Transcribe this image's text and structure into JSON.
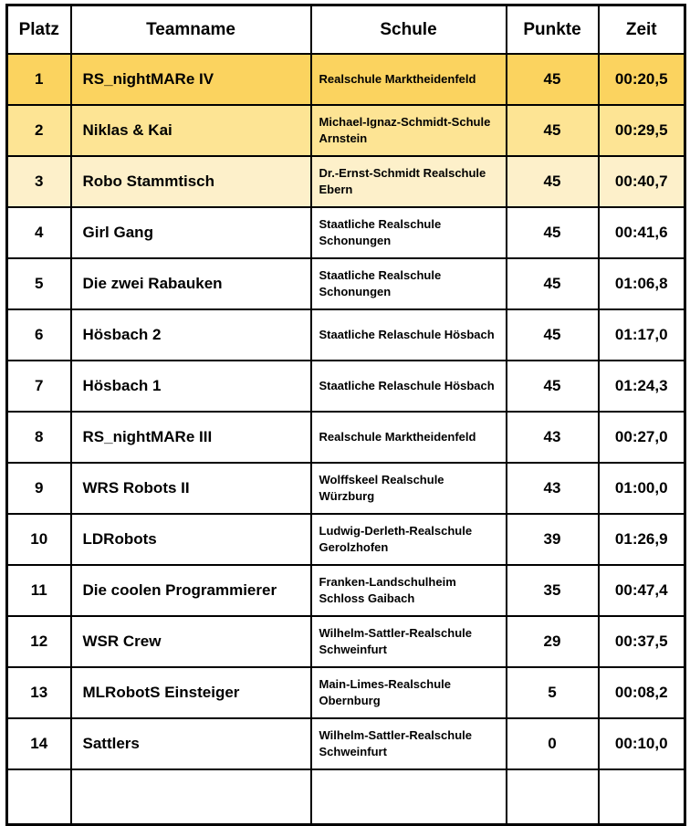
{
  "table": {
    "columns": [
      {
        "key": "platz",
        "label": "Platz"
      },
      {
        "key": "teamname",
        "label": "Teamname"
      },
      {
        "key": "schule",
        "label": "Schule"
      },
      {
        "key": "punkte",
        "label": "Punkte"
      },
      {
        "key": "zeit",
        "label": "Zeit"
      }
    ],
    "rows": [
      {
        "platz": "1",
        "teamname": "RS_nightMARe IV",
        "schule": "Realschule Marktheidenfeld",
        "punkte": "45",
        "zeit": "00:20,5",
        "highlight": "gold"
      },
      {
        "platz": "2",
        "teamname": "Niklas & Kai",
        "schule": "Michael-Ignaz-Schmidt-Schule Arnstein",
        "punkte": "45",
        "zeit": "00:29,5",
        "highlight": "gold2"
      },
      {
        "platz": "3",
        "teamname": "Robo Stammtisch",
        "schule": "Dr.-Ernst-Schmidt Realschule Ebern",
        "punkte": "45",
        "zeit": "00:40,7",
        "highlight": "cream"
      },
      {
        "platz": "4",
        "teamname": "Girl Gang",
        "schule": "Staatliche Realschule Schonungen",
        "punkte": "45",
        "zeit": "00:41,6",
        "highlight": "none"
      },
      {
        "platz": "5",
        "teamname": "Die zwei Rabauken",
        "schule": "Staatliche Realschule Schonungen",
        "punkte": "45",
        "zeit": "01:06,8",
        "highlight": "none"
      },
      {
        "platz": "6",
        "teamname": "Hösbach 2",
        "schule": "Staatliche Relaschule Hösbach",
        "punkte": "45",
        "zeit": "01:17,0",
        "highlight": "none"
      },
      {
        "platz": "7",
        "teamname": "Hösbach 1",
        "schule": "Staatliche Relaschule Hösbach",
        "punkte": "45",
        "zeit": "01:24,3",
        "highlight": "none"
      },
      {
        "platz": "8",
        "teamname": "RS_nightMARe III",
        "schule": "Realschule Marktheidenfeld",
        "punkte": "43",
        "zeit": "00:27,0",
        "highlight": "none"
      },
      {
        "platz": "9",
        "teamname": "WRS Robots II",
        "schule": "Wolffskeel Realschule Würzburg",
        "punkte": "43",
        "zeit": "01:00,0",
        "highlight": "none"
      },
      {
        "platz": "10",
        "teamname": "LDRobots",
        "schule": "Ludwig-Derleth-Realschule Gerolzhofen",
        "punkte": "39",
        "zeit": "01:26,9",
        "highlight": "none"
      },
      {
        "platz": "11",
        "teamname": "Die coolen Programmierer",
        "schule": "Franken-Landschulheim Schloss Gaibach",
        "punkte": "35",
        "zeit": "00:47,4",
        "highlight": "none"
      },
      {
        "platz": "12",
        "teamname": "WSR Crew",
        "schule": "Wilhelm-Sattler-Realschule Schweinfurt",
        "punkte": "29",
        "zeit": "00:37,5",
        "highlight": "none"
      },
      {
        "platz": "13",
        "teamname": "MLRobotS Einsteiger",
        "schule": "Main-Limes-Realschule Obernburg",
        "punkte": "5",
        "zeit": "00:08,2",
        "highlight": "none"
      },
      {
        "platz": "14",
        "teamname": "Sattlers",
        "schule": "Wilhelm-Sattler-Realschule Schweinfurt",
        "punkte": "0",
        "zeit": "00:10,0",
        "highlight": "none"
      }
    ]
  },
  "colors": {
    "rank1_gold": "#FBD35F",
    "rank2_light_gold": "#FDE494",
    "rank3_cream": "#FDF0CA",
    "row_default": "#FFFFFF",
    "border": "#000000",
    "text": "#000000"
  }
}
